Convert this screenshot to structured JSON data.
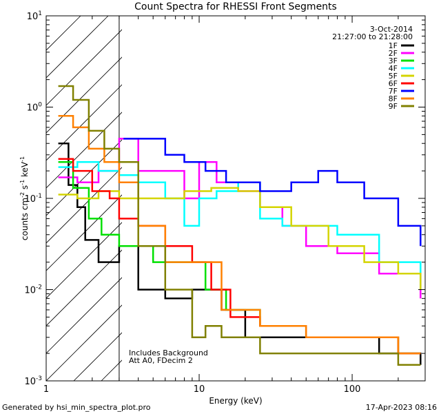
{
  "colors": {
    "background": "#ffffff",
    "axis": "#000000",
    "series": {
      "1F": "#000000",
      "2F": "#ff00ff",
      "3F": "#00e000",
      "4F": "#00ffff",
      "5F": "#d4d400",
      "6F": "#ff0000",
      "7F": "#0000ff",
      "8F": "#ff8000",
      "9F": "#808000"
    }
  },
  "chart_data": {
    "type": "line",
    "title": "Count Spectra for RHESSI Front Segments",
    "xlabel": "Energy (keV)",
    "ylabel_main": "counts cm",
    "ylabel_sup1": "-2",
    "ylabel_mid": " s",
    "ylabel_sup2": "-1",
    "ylabel_mid2": " keV",
    "ylabel_sup3": "-1",
    "xscale": "log",
    "yscale": "log",
    "xlim": [
      1,
      300
    ],
    "ylim": [
      0.001,
      10
    ],
    "x_ticks": [
      {
        "value": 1,
        "label": "1"
      },
      {
        "value": 10,
        "label": "10"
      },
      {
        "value": 100,
        "label": "100"
      }
    ],
    "y_ticks": [
      {
        "value": 0.001,
        "base": "10",
        "exp": "-3"
      },
      {
        "value": 0.01,
        "base": "10",
        "exp": "-2"
      },
      {
        "value": 0.1,
        "base": "10",
        "exp": "-1"
      },
      {
        "value": 1,
        "base": "10",
        "exp": "0"
      },
      {
        "value": 10,
        "base": "10",
        "exp": "1"
      }
    ],
    "shaded_region": {
      "x_min": 1,
      "x_max": 3,
      "style": "hatched"
    },
    "date": "3-Oct-2014",
    "time_range": "21:27:00 to 21:28:00",
    "notes": [
      "Includes Background",
      "Att A0, FDecim 2"
    ],
    "legend_position": "top-right",
    "series": [
      {
        "name": "1F",
        "values": [
          [
            1.2,
            0.4
          ],
          [
            1.4,
            0.14
          ],
          [
            1.6,
            0.08
          ],
          [
            1.8,
            0.035
          ],
          [
            2.2,
            0.02
          ],
          [
            2.6,
            0.02
          ],
          [
            3.0,
            0.03
          ],
          [
            4,
            0.01
          ],
          [
            6,
            0.008
          ],
          [
            9,
            0.01
          ],
          [
            11,
            0.01
          ],
          [
            14,
            0.006
          ],
          [
            20,
            0.003
          ],
          [
            40,
            0.003
          ],
          [
            80,
            0.003
          ],
          [
            150,
            0.002
          ],
          [
            280,
            0.0015
          ]
        ]
      },
      {
        "name": "2F",
        "values": [
          [
            1.2,
            0.17
          ],
          [
            1.6,
            0.15
          ],
          [
            2.2,
            0.2
          ],
          [
            3.0,
            0.45
          ],
          [
            4,
            0.2
          ],
          [
            6,
            0.2
          ],
          [
            8,
            0.1
          ],
          [
            10,
            0.25
          ],
          [
            13,
            0.15
          ],
          [
            18,
            0.12
          ],
          [
            25,
            0.08
          ],
          [
            35,
            0.05
          ],
          [
            50,
            0.03
          ],
          [
            80,
            0.025
          ],
          [
            150,
            0.015
          ],
          [
            280,
            0.008
          ]
        ]
      },
      {
        "name": "3F",
        "values": [
          [
            1.2,
            0.25
          ],
          [
            1.5,
            0.13
          ],
          [
            1.9,
            0.06
          ],
          [
            2.3,
            0.04
          ],
          [
            3.0,
            0.03
          ],
          [
            5,
            0.02
          ],
          [
            8,
            0.02
          ],
          [
            11,
            0.01
          ],
          [
            15,
            0.006
          ],
          [
            25,
            0.004
          ],
          [
            50,
            0.003
          ],
          [
            100,
            0.003
          ],
          [
            200,
            0.002
          ],
          [
            280,
            0.002
          ]
        ]
      },
      {
        "name": "4F",
        "values": [
          [
            1.2,
            0.22
          ],
          [
            1.6,
            0.25
          ],
          [
            2.2,
            0.2
          ],
          [
            3.0,
            0.18
          ],
          [
            4,
            0.15
          ],
          [
            6,
            0.1
          ],
          [
            8,
            0.05
          ],
          [
            10,
            0.1
          ],
          [
            13,
            0.12
          ],
          [
            18,
            0.15
          ],
          [
            25,
            0.06
          ],
          [
            35,
            0.05
          ],
          [
            50,
            0.05
          ],
          [
            80,
            0.04
          ],
          [
            150,
            0.02
          ],
          [
            280,
            0.01
          ]
        ]
      },
      {
        "name": "5F",
        "values": [
          [
            1.2,
            0.11
          ],
          [
            1.6,
            0.1
          ],
          [
            2.2,
            0.12
          ],
          [
            3.0,
            0.1
          ],
          [
            5,
            0.1
          ],
          [
            8,
            0.12
          ],
          [
            12,
            0.13
          ],
          [
            18,
            0.12
          ],
          [
            25,
            0.08
          ],
          [
            40,
            0.05
          ],
          [
            70,
            0.03
          ],
          [
            120,
            0.02
          ],
          [
            200,
            0.015
          ],
          [
            280,
            0.01
          ]
        ]
      },
      {
        "name": "6F",
        "values": [
          [
            1.2,
            0.27
          ],
          [
            1.5,
            0.2
          ],
          [
            2.0,
            0.12
          ],
          [
            2.6,
            0.1
          ],
          [
            3.0,
            0.06
          ],
          [
            4,
            0.05
          ],
          [
            6,
            0.03
          ],
          [
            9,
            0.02
          ],
          [
            12,
            0.01
          ],
          [
            16,
            0.005
          ],
          [
            25,
            0.004
          ],
          [
            50,
            0.003
          ],
          [
            100,
            0.003
          ],
          [
            200,
            0.002
          ],
          [
            280,
            0.002
          ]
        ]
      },
      {
        "name": "7F",
        "values": [
          [
            3.2,
            0.45
          ],
          [
            4.5,
            0.45
          ],
          [
            6,
            0.3
          ],
          [
            8,
            0.25
          ],
          [
            11,
            0.2
          ],
          [
            15,
            0.15
          ],
          [
            25,
            0.12
          ],
          [
            40,
            0.15
          ],
          [
            60,
            0.2
          ],
          [
            80,
            0.15
          ],
          [
            120,
            0.1
          ],
          [
            200,
            0.05
          ],
          [
            280,
            0.03
          ]
        ]
      },
      {
        "name": "8F",
        "values": [
          [
            1.2,
            0.8
          ],
          [
            1.5,
            0.6
          ],
          [
            1.9,
            0.35
          ],
          [
            2.4,
            0.25
          ],
          [
            3.0,
            0.15
          ],
          [
            4,
            0.05
          ],
          [
            6,
            0.02
          ],
          [
            10,
            0.02
          ],
          [
            14,
            0.006
          ],
          [
            25,
            0.004
          ],
          [
            50,
            0.003
          ],
          [
            100,
            0.003
          ],
          [
            200,
            0.002
          ],
          [
            280,
            0.002
          ]
        ]
      },
      {
        "name": "9F",
        "values": [
          [
            1.2,
            1.7
          ],
          [
            1.5,
            1.2
          ],
          [
            1.9,
            0.55
          ],
          [
            2.4,
            0.35
          ],
          [
            3.0,
            0.25
          ],
          [
            4,
            0.03
          ],
          [
            6,
            0.01
          ],
          [
            9,
            0.003
          ],
          [
            11,
            0.004
          ],
          [
            14,
            0.003
          ],
          [
            25,
            0.002
          ],
          [
            50,
            0.002
          ],
          [
            100,
            0.002
          ],
          [
            200,
            0.0015
          ],
          [
            280,
            0.0015
          ]
        ]
      }
    ]
  },
  "footer": {
    "generated_by": "Generated by hsi_min_spectra_plot.pro",
    "timestamp": "17-Apr-2023 08:16"
  }
}
